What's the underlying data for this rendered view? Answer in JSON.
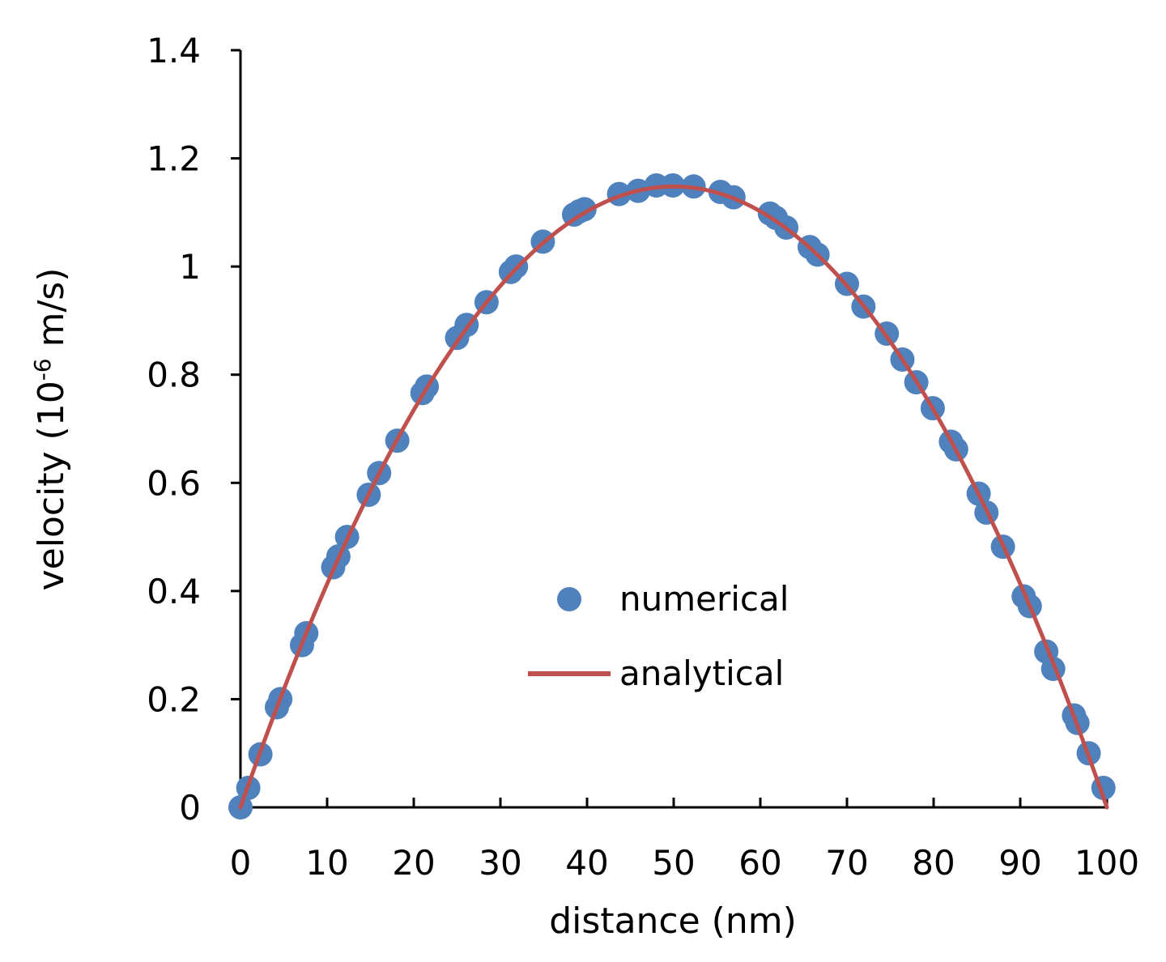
{
  "chart_data": {
    "type": "scatter",
    "title": "",
    "xlabel": "distance (nm)",
    "ylabel": {
      "prefix": "velocity (10",
      "superscript": "-6",
      "suffix": " m/s)"
    },
    "xlim": [
      0,
      100
    ],
    "ylim": [
      0,
      1.4
    ],
    "xticks": [
      0,
      10,
      20,
      30,
      40,
      50,
      60,
      70,
      80,
      90,
      100
    ],
    "xtick_labels": [
      "0",
      "10",
      "20",
      "30",
      "40",
      "50",
      "60",
      "70",
      "80",
      "90",
      "100"
    ],
    "yticks": [
      0,
      0.2,
      0.4,
      0.6,
      0.8,
      1.0,
      1.2,
      1.4
    ],
    "ytick_labels": [
      "0",
      "0.2",
      "0.4",
      "0.6",
      "0.8",
      "1",
      "1.2",
      "1.4"
    ],
    "grid": false,
    "legend_position": "center",
    "series": [
      {
        "name": "numerical",
        "kind": "scatter",
        "color": "#4F81BD",
        "x": [
          0,
          0.9,
          2.3,
          4.2,
          4.6,
          7.1,
          7.6,
          10.7,
          11.3,
          12.3,
          14.8,
          16.0,
          18.1,
          21.0,
          21.5,
          25.0,
          26.1,
          28.4,
          31.2,
          31.8,
          34.9,
          38.5,
          39.1,
          39.7,
          43.7,
          45.9,
          48.0,
          49.9,
          52.3,
          55.4,
          56.9,
          61.1,
          61.8,
          63.0,
          65.7,
          66.6,
          70.0,
          71.9,
          74.6,
          76.4,
          78.0,
          79.9,
          82.0,
          82.6,
          85.2,
          86.1,
          88.0,
          90.4,
          91.1,
          93.0,
          93.8,
          96.2,
          96.6,
          97.9,
          99.6
        ],
        "y": [
          0,
          0.036,
          0.098,
          0.185,
          0.2,
          0.3,
          0.322,
          0.444,
          0.464,
          0.5,
          0.578,
          0.618,
          0.678,
          0.766,
          0.778,
          0.868,
          0.892,
          0.934,
          0.99,
          1.0,
          1.046,
          1.096,
          1.102,
          1.106,
          1.134,
          1.14,
          1.15,
          1.15,
          1.148,
          1.138,
          1.128,
          1.098,
          1.09,
          1.072,
          1.036,
          1.022,
          0.968,
          0.926,
          0.876,
          0.828,
          0.786,
          0.738,
          0.676,
          0.662,
          0.58,
          0.545,
          0.482,
          0.39,
          0.372,
          0.288,
          0.256,
          0.17,
          0.156,
          0.1,
          0.036
        ]
      },
      {
        "name": "analytical",
        "kind": "line",
        "color": "#C0504D",
        "formula": "v = 4 * vmax * x * (L - x) / L^2",
        "vmax": 1.148,
        "L": 100
      }
    ]
  }
}
